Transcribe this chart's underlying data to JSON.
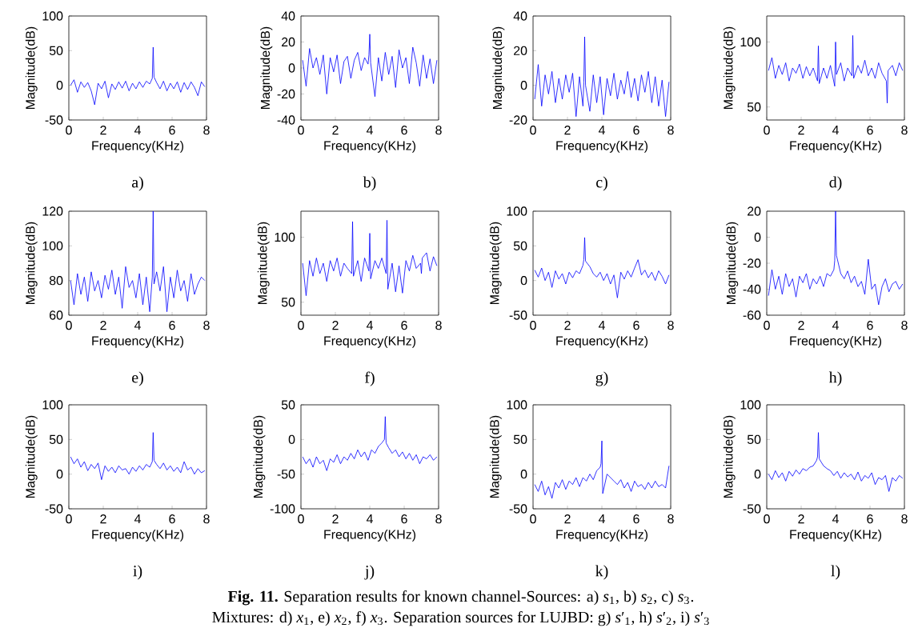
{
  "chart_data": [
    {
      "type": "line",
      "title": "a)",
      "xlabel": "Frequency(KHz)",
      "ylabel": "Magnitude(dB)",
      "color": "#0000ff",
      "xlim": [
        0,
        8
      ],
      "xticks": [
        0,
        2,
        4,
        6,
        8
      ],
      "ylim": [
        -50,
        100
      ],
      "yticks": [
        -50,
        0,
        50,
        100
      ],
      "x": [
        0.1,
        0.3,
        0.5,
        0.7,
        0.9,
        1.1,
        1.3,
        1.5,
        1.7,
        1.9,
        2.1,
        2.3,
        2.5,
        2.7,
        2.9,
        3.1,
        3.3,
        3.5,
        3.7,
        3.9,
        4.1,
        4.3,
        4.5,
        4.7,
        4.85,
        4.9,
        4.95,
        5.1,
        5.3,
        5.5,
        5.7,
        5.9,
        6.1,
        6.3,
        6.5,
        6.7,
        6.9,
        7.1,
        7.3,
        7.5,
        7.7,
        7.9
      ],
      "values": [
        0,
        8,
        -10,
        5,
        -3,
        4,
        -8,
        -28,
        3,
        -5,
        6,
        -18,
        2,
        -6,
        5,
        -4,
        6,
        -8,
        3,
        -5,
        5,
        -3,
        6,
        2,
        10,
        55,
        12,
        4,
        -5,
        6,
        -8,
        3,
        -5,
        5,
        -10,
        4,
        -6,
        5,
        -3,
        -15,
        5,
        -2
      ],
      "annotations": [
        "**Fig. 11.** Separation results for known channel-Sources: a) *s*$_{1}$, b) *s*$_{2}$, c) *s*$_{3}$.",
        "Mixtures: d) *x*$_{1}$, e) *x*$_{2}$, f) *x*$_{3}$. Separation sources for LUJBD: g) *s*′$_{1}$, h) *s*′$_{2}$, i) *s*′$_{3}$"
      ]
    },
    {
      "type": "line",
      "title": "b)",
      "xlabel": "Frequency(KHz)",
      "ylabel": "Magnitude(dB)",
      "color": "#0000ff",
      "xlim": [
        0,
        8
      ],
      "xticks": [
        0,
        2,
        4,
        6,
        8
      ],
      "ylim": [
        -40,
        40
      ],
      "yticks": [
        -40,
        -20,
        0,
        20,
        40
      ],
      "x": [
        0.1,
        0.3,
        0.5,
        0.7,
        0.9,
        1.1,
        1.3,
        1.5,
        1.7,
        1.9,
        2.1,
        2.3,
        2.5,
        2.7,
        2.9,
        3.1,
        3.3,
        3.5,
        3.7,
        3.9,
        3.95,
        4.0,
        4.05,
        4.3,
        4.5,
        4.7,
        4.9,
        5.1,
        5.3,
        5.5,
        5.7,
        5.9,
        6.1,
        6.3,
        6.5,
        6.7,
        6.9,
        7.1,
        7.3,
        7.5,
        7.7,
        7.9
      ],
      "values": [
        6,
        -14,
        15,
        0,
        8,
        -5,
        10,
        -20,
        8,
        -3,
        10,
        -12,
        5,
        9,
        -8,
        6,
        12,
        -2,
        8,
        3,
        10,
        26,
        4,
        -22,
        8,
        -10,
        12,
        -5,
        9,
        -15,
        14,
        0,
        8,
        -12,
        16,
        4,
        -14,
        10,
        -8,
        7,
        -12,
        6
      ]
    },
    {
      "type": "line",
      "title": "c)",
      "xlabel": "Frequency(KHz)",
      "ylabel": "Magnitude(dB)",
      "color": "#0000ff",
      "xlim": [
        0,
        8
      ],
      "xticks": [
        0,
        2,
        4,
        6,
        8
      ],
      "ylim": [
        -20,
        40
      ],
      "yticks": [
        -20,
        0,
        20,
        40
      ],
      "x": [
        0.1,
        0.3,
        0.5,
        0.7,
        0.9,
        1.1,
        1.3,
        1.5,
        1.7,
        1.9,
        2.1,
        2.3,
        2.5,
        2.7,
        2.9,
        2.95,
        3.0,
        3.05,
        3.3,
        3.5,
        3.7,
        3.9,
        4.1,
        4.3,
        4.5,
        4.7,
        4.9,
        5.1,
        5.3,
        5.5,
        5.7,
        5.9,
        6.1,
        6.3,
        6.5,
        6.7,
        6.9,
        7.1,
        7.3,
        7.5,
        7.7,
        7.9
      ],
      "values": [
        -8,
        12,
        -12,
        6,
        -5,
        8,
        -10,
        4,
        -8,
        6,
        -4,
        7,
        -18,
        5,
        -12,
        2,
        28,
        0,
        -15,
        6,
        -10,
        5,
        -17,
        4,
        -6,
        7,
        -8,
        3,
        -5,
        8,
        -7,
        4,
        -9,
        6,
        -4,
        8,
        -10,
        5,
        -12,
        3,
        -18,
        2
      ]
    },
    {
      "type": "line",
      "title": "d)",
      "xlabel": "Frequency(KHz)",
      "ylabel": "Magnitude(dB)",
      "color": "#0000ff",
      "xlim": [
        0,
        8
      ],
      "xticks": [
        0,
        2,
        4,
        6,
        8
      ],
      "ylim": [
        40,
        120
      ],
      "yticks": [
        50,
        100
      ],
      "x": [
        0.1,
        0.3,
        0.5,
        0.7,
        0.9,
        1.1,
        1.3,
        1.5,
        1.7,
        1.9,
        2.1,
        2.3,
        2.5,
        2.7,
        2.95,
        3.0,
        3.05,
        3.3,
        3.5,
        3.7,
        3.95,
        4.0,
        4.05,
        4.3,
        4.5,
        4.7,
        4.95,
        5.0,
        5.05,
        5.3,
        5.5,
        5.7,
        5.9,
        6.1,
        6.3,
        6.5,
        6.7,
        6.95,
        7.0,
        7.05,
        7.3,
        7.5,
        7.7,
        7.9
      ],
      "values": [
        78,
        88,
        72,
        82,
        75,
        84,
        70,
        80,
        76,
        83,
        72,
        81,
        74,
        80,
        70,
        97,
        68,
        80,
        72,
        82,
        66,
        100,
        75,
        84,
        70,
        80,
        74,
        105,
        72,
        82,
        76,
        86,
        74,
        80,
        72,
        84,
        76,
        70,
        53,
        78,
        82,
        74,
        84,
        78
      ]
    },
    {
      "type": "line",
      "title": "e)",
      "xlabel": "Frequency(KHz)",
      "ylabel": "Magnitude(dB)",
      "color": "#0000ff",
      "xlim": [
        0,
        8
      ],
      "xticks": [
        0,
        2,
        4,
        6,
        8
      ],
      "ylim": [
        60,
        120
      ],
      "yticks": [
        60,
        80,
        100,
        120
      ],
      "x": [
        0.1,
        0.3,
        0.5,
        0.7,
        0.9,
        1.1,
        1.3,
        1.5,
        1.7,
        1.9,
        2.1,
        2.3,
        2.5,
        2.7,
        2.9,
        3.1,
        3.3,
        3.5,
        3.7,
        3.9,
        4.1,
        4.3,
        4.5,
        4.7,
        4.85,
        4.9,
        4.95,
        5.1,
        5.3,
        5.5,
        5.7,
        5.9,
        6.1,
        6.3,
        6.5,
        6.7,
        6.9,
        7.1,
        7.3,
        7.5,
        7.7,
        7.9
      ],
      "values": [
        80,
        66,
        84,
        72,
        82,
        68,
        85,
        74,
        80,
        70,
        83,
        75,
        86,
        72,
        82,
        64,
        88,
        76,
        80,
        70,
        84,
        66,
        82,
        62,
        82,
        120,
        78,
        85,
        74,
        88,
        62,
        82,
        70,
        86,
        74,
        80,
        68,
        84,
        72,
        78,
        82,
        80
      ]
    },
    {
      "type": "line",
      "title": "f)",
      "xlabel": "Frequency(KHz)",
      "ylabel": "Magnitude(dB)",
      "color": "#0000ff",
      "xlim": [
        0,
        8
      ],
      "xticks": [
        0,
        2,
        4,
        6,
        8
      ],
      "ylim": [
        40,
        120
      ],
      "yticks": [
        50,
        100
      ],
      "x": [
        0.1,
        0.3,
        0.5,
        0.7,
        0.9,
        1.1,
        1.3,
        1.5,
        1.7,
        1.9,
        2.1,
        2.3,
        2.5,
        2.7,
        2.95,
        3.0,
        3.05,
        3.3,
        3.5,
        3.7,
        3.95,
        4.0,
        4.05,
        4.3,
        4.5,
        4.7,
        4.95,
        5.0,
        5.05,
        5.3,
        5.5,
        5.7,
        5.9,
        6.1,
        6.3,
        6.5,
        6.7,
        6.95,
        7.0,
        7.05,
        7.3,
        7.5,
        7.7,
        7.9
      ],
      "values": [
        80,
        55,
        82,
        70,
        84,
        72,
        80,
        66,
        82,
        74,
        84,
        70,
        80,
        76,
        72,
        112,
        70,
        82,
        66,
        84,
        74,
        103,
        68,
        82,
        76,
        84,
        72,
        113,
        60,
        80,
        58,
        78,
        57,
        82,
        74,
        86,
        76,
        80,
        72,
        84,
        88,
        74,
        85,
        78
      ]
    },
    {
      "type": "line",
      "title": "g)",
      "xlabel": "Frequency(KHz)",
      "ylabel": "Magnitude(dB)",
      "color": "#0000ff",
      "xlim": [
        0,
        8
      ],
      "xticks": [
        0,
        2,
        4,
        6,
        8
      ],
      "ylim": [
        -50,
        100
      ],
      "yticks": [
        -50,
        0,
        50,
        100
      ],
      "x": [
        0.1,
        0.3,
        0.5,
        0.7,
        0.9,
        1.1,
        1.3,
        1.5,
        1.7,
        1.9,
        2.1,
        2.3,
        2.5,
        2.7,
        2.9,
        2.95,
        3.0,
        3.05,
        3.3,
        3.5,
        3.7,
        3.9,
        4.1,
        4.3,
        4.5,
        4.7,
        4.9,
        5.1,
        5.3,
        5.5,
        5.7,
        5.9,
        6.1,
        6.3,
        6.5,
        6.7,
        6.9,
        7.1,
        7.3,
        7.5,
        7.7,
        7.9
      ],
      "values": [
        15,
        5,
        18,
        0,
        12,
        -10,
        14,
        2,
        10,
        -5,
        12,
        4,
        14,
        10,
        22,
        30,
        62,
        28,
        20,
        10,
        5,
        12,
        0,
        10,
        -5,
        8,
        -25,
        12,
        2,
        14,
        5,
        18,
        30,
        8,
        15,
        4,
        12,
        0,
        14,
        6,
        -5,
        8
      ]
    },
    {
      "type": "line",
      "title": "h)",
      "xlabel": "Frequency(KHz)",
      "ylabel": "Magnitude(dB)",
      "color": "#0000ff",
      "xlim": [
        0,
        8
      ],
      "xticks": [
        0,
        2,
        4,
        6,
        8
      ],
      "ylim": [
        -60,
        20
      ],
      "yticks": [
        -60,
        -40,
        -20,
        0,
        20
      ],
      "x": [
        0.1,
        0.3,
        0.5,
        0.7,
        0.9,
        1.1,
        1.3,
        1.5,
        1.7,
        1.9,
        2.1,
        2.3,
        2.5,
        2.7,
        2.9,
        3.1,
        3.3,
        3.5,
        3.7,
        3.9,
        3.95,
        4.0,
        4.05,
        4.3,
        4.5,
        4.7,
        4.9,
        5.1,
        5.3,
        5.5,
        5.7,
        5.9,
        6.1,
        6.3,
        6.5,
        6.7,
        6.9,
        7.1,
        7.3,
        7.5,
        7.7,
        7.9
      ],
      "values": [
        -45,
        -25,
        -40,
        -30,
        -44,
        -28,
        -38,
        -32,
        -46,
        -30,
        -35,
        -28,
        -40,
        -32,
        -36,
        -30,
        -38,
        -28,
        -30,
        -25,
        -18,
        20,
        -14,
        -28,
        -32,
        -26,
        -35,
        -30,
        -38,
        -34,
        -44,
        -17,
        -40,
        -36,
        -52,
        -38,
        -32,
        -42,
        -36,
        -34,
        -40,
        -36
      ]
    },
    {
      "type": "line",
      "title": "i)",
      "xlabel": "Frequency(KHz)",
      "ylabel": "Magnitude(dB)",
      "color": "#0000ff",
      "xlim": [
        0,
        8
      ],
      "xticks": [
        0,
        2,
        4,
        6,
        8
      ],
      "ylim": [
        -50,
        100
      ],
      "yticks": [
        -50,
        0,
        50,
        100
      ],
      "x": [
        0.1,
        0.3,
        0.5,
        0.7,
        0.9,
        1.1,
        1.3,
        1.5,
        1.7,
        1.9,
        2.1,
        2.3,
        2.5,
        2.7,
        2.9,
        3.1,
        3.3,
        3.5,
        3.7,
        3.9,
        4.1,
        4.3,
        4.5,
        4.7,
        4.85,
        4.9,
        4.95,
        5.1,
        5.3,
        5.5,
        5.7,
        5.9,
        6.1,
        6.3,
        6.5,
        6.7,
        6.9,
        7.1,
        7.3,
        7.5,
        7.7,
        7.9
      ],
      "values": [
        25,
        15,
        22,
        10,
        18,
        5,
        14,
        8,
        16,
        -8,
        12,
        4,
        10,
        2,
        12,
        6,
        8,
        0,
        10,
        4,
        12,
        6,
        14,
        10,
        18,
        60,
        20,
        14,
        8,
        16,
        6,
        12,
        4,
        10,
        2,
        18,
        6,
        10,
        0,
        8,
        2,
        5
      ]
    },
    {
      "type": "line",
      "title": "j)",
      "xlabel": "Frequency(KHz)",
      "ylabel": "Magnitude(dB)",
      "color": "#0000ff",
      "xlim": [
        0,
        8
      ],
      "xticks": [
        0,
        2,
        4,
        6,
        8
      ],
      "ylim": [
        -100,
        50
      ],
      "yticks": [
        -100,
        -50,
        0,
        50
      ],
      "x": [
        0.1,
        0.3,
        0.5,
        0.7,
        0.9,
        1.1,
        1.3,
        1.5,
        1.7,
        1.9,
        2.1,
        2.3,
        2.5,
        2.7,
        2.9,
        3.1,
        3.3,
        3.5,
        3.7,
        3.9,
        4.1,
        4.3,
        4.5,
        4.7,
        4.85,
        4.9,
        4.95,
        5.1,
        5.3,
        5.5,
        5.7,
        5.9,
        6.1,
        6.3,
        6.5,
        6.7,
        6.9,
        7.1,
        7.3,
        7.5,
        7.7,
        7.9
      ],
      "values": [
        -25,
        -35,
        -28,
        -40,
        -25,
        -35,
        -30,
        -45,
        -28,
        -33,
        -22,
        -35,
        -25,
        -30,
        -20,
        -28,
        -15,
        -25,
        -18,
        -30,
        -15,
        -20,
        -10,
        -5,
        0,
        33,
        -5,
        -12,
        -20,
        -15,
        -25,
        -18,
        -28,
        -20,
        -30,
        -22,
        -35,
        -25,
        -28,
        -22,
        -30,
        -25
      ]
    },
    {
      "type": "line",
      "title": "k)",
      "xlabel": "Frequency(KHz)",
      "ylabel": "Magnitude(dB)",
      "color": "#0000ff",
      "xlim": [
        0,
        8
      ],
      "xticks": [
        0,
        2,
        4,
        6,
        8
      ],
      "ylim": [
        -50,
        100
      ],
      "yticks": [
        -50,
        0,
        50,
        100
      ],
      "x": [
        0.1,
        0.3,
        0.5,
        0.7,
        0.9,
        1.1,
        1.3,
        1.5,
        1.7,
        1.9,
        2.1,
        2.3,
        2.5,
        2.7,
        2.9,
        3.1,
        3.3,
        3.5,
        3.7,
        3.9,
        3.95,
        4.0,
        4.05,
        4.3,
        4.5,
        4.7,
        4.9,
        5.1,
        5.3,
        5.5,
        5.7,
        5.9,
        6.1,
        6.3,
        6.5,
        6.7,
        6.9,
        7.1,
        7.3,
        7.5,
        7.7,
        7.9
      ],
      "values": [
        -15,
        -25,
        -10,
        -30,
        -18,
        -35,
        -12,
        -20,
        -8,
        -22,
        -10,
        -15,
        -5,
        -18,
        -5,
        -10,
        0,
        -8,
        5,
        10,
        15,
        48,
        -28,
        0,
        -5,
        -10,
        -15,
        -8,
        -20,
        -12,
        -25,
        -10,
        -18,
        -15,
        -22,
        -12,
        -20,
        -10,
        -18,
        -15,
        -20,
        12
      ]
    },
    {
      "type": "line",
      "title": "l)",
      "xlabel": "Frequency(KHz)",
      "ylabel": "Magnitude(dB)",
      "color": "#0000ff",
      "xlim": [
        0,
        8
      ],
      "xticks": [
        0,
        2,
        4,
        6,
        8
      ],
      "ylim": [
        -50,
        100
      ],
      "yticks": [
        -50,
        0,
        50,
        100
      ],
      "x": [
        0.1,
        0.3,
        0.5,
        0.7,
        0.9,
        1.1,
        1.3,
        1.5,
        1.7,
        1.9,
        2.1,
        2.3,
        2.5,
        2.7,
        2.9,
        2.95,
        3.0,
        3.05,
        3.3,
        3.5,
        3.7,
        3.9,
        4.1,
        4.3,
        4.5,
        4.7,
        4.9,
        5.1,
        5.3,
        5.5,
        5.7,
        5.9,
        6.1,
        6.3,
        6.5,
        6.7,
        6.9,
        7.1,
        7.3,
        7.5,
        7.7,
        7.9
      ],
      "values": [
        0,
        -8,
        5,
        -5,
        2,
        -10,
        4,
        -3,
        6,
        0,
        8,
        5,
        10,
        12,
        20,
        25,
        60,
        22,
        12,
        8,
        5,
        -2,
        4,
        -6,
        2,
        -4,
        0,
        -8,
        3,
        -10,
        -2,
        -6,
        2,
        -15,
        -5,
        -8,
        -2,
        -25,
        -5,
        -10,
        -2,
        -6
      ]
    }
  ]
}
